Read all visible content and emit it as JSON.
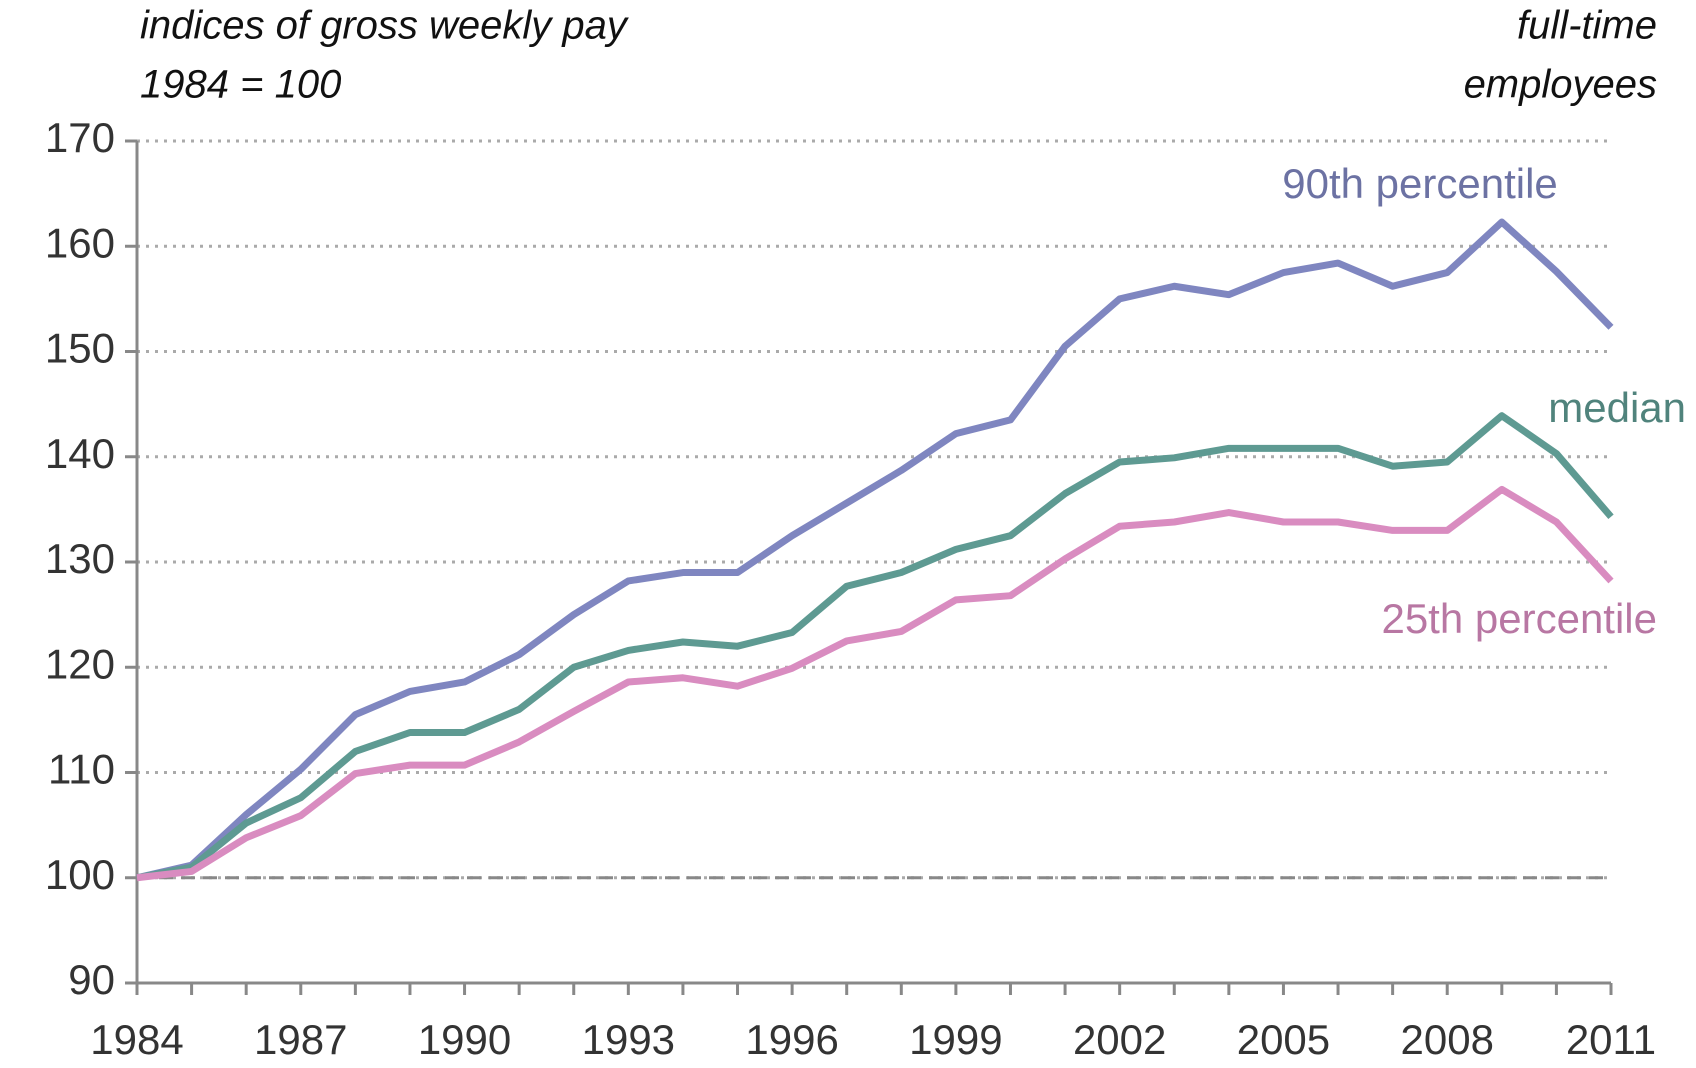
{
  "chart_data": {
    "type": "line",
    "title_left": [
      "indices of gross weekly pay",
      "1984  = 100"
    ],
    "title_right": [
      "full-time",
      "employees"
    ],
    "x": [
      1984,
      1985,
      1986,
      1987,
      1988,
      1989,
      1990,
      1991,
      1992,
      1993,
      1994,
      1995,
      1996,
      1997,
      1998,
      1999,
      2000,
      2001,
      2002,
      2003,
      2004,
      2005,
      2006,
      2007,
      2008,
      2009,
      2010,
      2011
    ],
    "series": [
      {
        "name": "90th percentile",
        "color": "#7f86c0",
        "values": [
          100,
          101.2,
          106,
          110.3,
          115.5,
          117.7,
          118.6,
          121.2,
          125,
          128.2,
          129,
          129,
          132.5,
          135.6,
          138.7,
          142.2,
          143.5,
          150.5,
          155,
          156.2,
          155.4,
          157.5,
          158.4,
          156.2,
          157.5,
          162.3,
          157.6,
          152.3
        ]
      },
      {
        "name": "median",
        "color": "#5e9a92",
        "values": [
          100,
          101,
          105.2,
          107.6,
          112,
          113.8,
          113.8,
          116,
          120,
          121.6,
          122.4,
          122,
          123.3,
          127.7,
          129,
          131.2,
          132.5,
          136.5,
          139.5,
          139.9,
          140.8,
          140.8,
          140.8,
          139.1,
          139.5,
          143.9,
          140.3,
          134.3
        ]
      },
      {
        "name": "25th percentile",
        "color": "#d98cc0",
        "values": [
          100,
          100.6,
          103.8,
          105.9,
          109.9,
          110.7,
          110.7,
          112.9,
          115.8,
          118.6,
          119,
          118.2,
          119.9,
          122.5,
          123.4,
          126.4,
          126.8,
          130.3,
          133.4,
          133.8,
          134.7,
          133.8,
          133.8,
          133,
          133,
          136.9,
          133.8,
          128.2
        ]
      }
    ],
    "xlim": [
      1984,
      2011
    ],
    "xticks": [
      1984,
      1987,
      1990,
      1993,
      1996,
      1999,
      2002,
      2005,
      2008,
      2011
    ],
    "ylim": [
      90,
      170
    ],
    "yticks": [
      90,
      100,
      110,
      120,
      130,
      140,
      150,
      160,
      170
    ],
    "reference_line": 100,
    "grid": true
  }
}
